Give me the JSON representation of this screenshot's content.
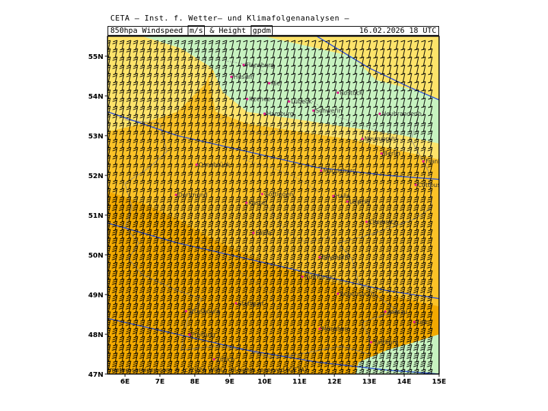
{
  "header": {
    "institute": "CETA — Inst. f. Wetter— und Klimafolgenanalysen —",
    "parameter_prefix": "850hpa Windspeed",
    "unit_speed": "m/s",
    "amp": "&",
    "height_label": "Height",
    "unit_height": "gpdm",
    "valid_time": "16.02.2026  18 UTC"
  },
  "map": {
    "lon_range": [
      5.5,
      15.0
    ],
    "lat_range": [
      47.0,
      55.5
    ],
    "lon_ticks": [
      {
        "value": 6,
        "label": "6E"
      },
      {
        "value": 7,
        "label": "7E"
      },
      {
        "value": 8,
        "label": "8E"
      },
      {
        "value": 9,
        "label": "9E"
      },
      {
        "value": 10,
        "label": "10E"
      },
      {
        "value": 11,
        "label": "11E"
      },
      {
        "value": 12,
        "label": "12E"
      },
      {
        "value": 13,
        "label": "13E"
      },
      {
        "value": 14,
        "label": "14E"
      },
      {
        "value": 15,
        "label": "15E"
      }
    ],
    "lat_ticks": [
      {
        "value": 47,
        "label": "47N"
      },
      {
        "value": 48,
        "label": "48N"
      },
      {
        "value": 49,
        "label": "49N"
      },
      {
        "value": 50,
        "label": "50N"
      },
      {
        "value": 51,
        "label": "51N"
      },
      {
        "value": 52,
        "label": "52N"
      },
      {
        "value": 53,
        "label": "53N"
      },
      {
        "value": 54,
        "label": "54N"
      },
      {
        "value": 55,
        "label": "55N"
      }
    ],
    "colors": {
      "strong_wind": "#f2a900",
      "moderate_wind": "#fbc227",
      "light_wind": "#fde36a",
      "weak_wind": "#c7f2c0",
      "contour": "#2a4fd8",
      "barb": "#000000",
      "border": "#8a8a8a",
      "city_marker": "#e0208a"
    },
    "cities": [
      {
        "name": "Flensburg",
        "lon": 9.4,
        "lat": 54.78
      },
      {
        "name": "Husum",
        "lon": 9.05,
        "lat": 54.48
      },
      {
        "name": "Kiel",
        "lon": 10.13,
        "lat": 54.32
      },
      {
        "name": "Rostock",
        "lon": 12.1,
        "lat": 54.08
      },
      {
        "name": "Itzehoe",
        "lon": 9.5,
        "lat": 53.92
      },
      {
        "name": "Lübeck",
        "lon": 10.7,
        "lat": 53.86
      },
      {
        "name": "Schwerin",
        "lon": 11.4,
        "lat": 53.63
      },
      {
        "name": "Neubrandenb.",
        "lon": 13.3,
        "lat": 53.55
      },
      {
        "name": "Hamburg",
        "lon": 10.0,
        "lat": 53.55
      },
      {
        "name": "Neuruppin",
        "lon": 12.8,
        "lat": 52.92
      },
      {
        "name": "Berlin",
        "lon": 13.35,
        "lat": 52.55
      },
      {
        "name": "Frankfurt/O.",
        "lon": 14.55,
        "lat": 52.35
      },
      {
        "name": "Osnabrück",
        "lon": 8.05,
        "lat": 52.27
      },
      {
        "name": "Magdeburg",
        "lon": 11.62,
        "lat": 52.12
      },
      {
        "name": "Cottbus",
        "lon": 14.33,
        "lat": 51.76
      },
      {
        "name": "Göttingen",
        "lon": 9.93,
        "lat": 51.53
      },
      {
        "name": "Halle",
        "lon": 11.97,
        "lat": 51.48
      },
      {
        "name": "Leipzig",
        "lon": 12.37,
        "lat": 51.34
      },
      {
        "name": "Kassel",
        "lon": 9.48,
        "lat": 51.31
      },
      {
        "name": "Dortmund",
        "lon": 7.46,
        "lat": 51.51
      },
      {
        "name": "Chemnitz",
        "lon": 12.92,
        "lat": 50.83
      },
      {
        "name": "Fulda",
        "lon": 9.68,
        "lat": 50.55
      },
      {
        "name": "Bayreuth",
        "lon": 11.58,
        "lat": 49.94
      },
      {
        "name": "Nürnberg",
        "lon": 11.08,
        "lat": 49.45
      },
      {
        "name": "Regensburg",
        "lon": 12.1,
        "lat": 49.02
      },
      {
        "name": "Stuttgart",
        "lon": 9.18,
        "lat": 48.78
      },
      {
        "name": "Strasbourg",
        "lon": 7.75,
        "lat": 48.58
      },
      {
        "name": "Passau",
        "lon": 13.46,
        "lat": 48.57
      },
      {
        "name": "München",
        "lon": 11.58,
        "lat": 48.14
      },
      {
        "name": "Salzburg",
        "lon": 13.05,
        "lat": 47.8
      },
      {
        "name": "Freiburg",
        "lon": 7.85,
        "lat": 47.99
      },
      {
        "name": "Zürich",
        "lon": 8.55,
        "lat": 47.37
      },
      {
        "name": "Linz",
        "lon": 14.29,
        "lat": 48.31
      }
    ]
  },
  "footer": "meteo-services.com © (c)2026 WIBIZ All rights reserved (CETA)"
}
